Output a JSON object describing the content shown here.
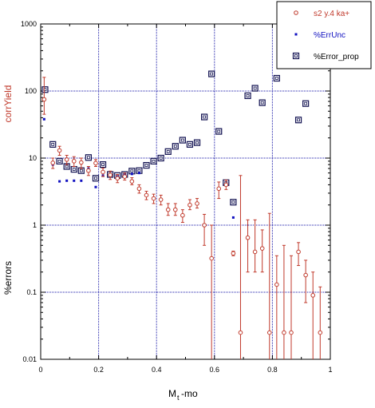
{
  "chart_data": {
    "type": "scatter",
    "xlabel": "M",
    "xlabel_sub": "t",
    "xlabel_suffix": "-mo",
    "ylabel_top": "corrYield",
    "ylabel_bottom": "%errors",
    "xlim": [
      0,
      1
    ],
    "ylim": [
      0.01,
      1000
    ],
    "y_scale": "log",
    "grid": true,
    "legend_position": "top-right",
    "x_ticks": [
      "0",
      "0.2",
      "0.4",
      "0.6",
      "0.8",
      "1"
    ],
    "y_ticks": [
      "0.01",
      "0.1",
      "1",
      "10",
      "100",
      "1000"
    ],
    "colors": {
      "red": "#c0392b",
      "blue": "#1010c0",
      "navy": "#101050",
      "grid": "#1a1aa8"
    },
    "series": [
      {
        "name": "s2 y.4 ka+",
        "marker": "circle",
        "color": "#c0392b",
        "x": [
          0.012,
          0.042,
          0.065,
          0.09,
          0.115,
          0.14,
          0.165,
          0.19,
          0.215,
          0.24,
          0.265,
          0.29,
          0.315,
          0.34,
          0.365,
          0.39,
          0.415,
          0.44,
          0.465,
          0.49,
          0.515,
          0.54,
          0.565,
          0.59,
          0.615,
          0.64,
          0.665,
          0.69,
          0.715,
          0.74,
          0.765,
          0.79,
          0.815,
          0.84,
          0.865,
          0.89,
          0.915,
          0.94,
          0.965
        ],
        "y": [
          75,
          8.5,
          13,
          9.5,
          9,
          8.6,
          6.5,
          8.4,
          6.2,
          5.6,
          5,
          5.3,
          4.5,
          3.5,
          2.8,
          2.5,
          2.4,
          1.7,
          1.7,
          1.4,
          2,
          2.1,
          1,
          0.32,
          3.5,
          4,
          0.38,
          0.025,
          0.65,
          0.4,
          0.45,
          0.025,
          0.13,
          0.025,
          0.025,
          0.4,
          0.18,
          0.09,
          0.025
        ],
        "y_low": [
          45,
          7,
          11,
          8,
          7.5,
          7,
          5.5,
          7.5,
          5.3,
          4.8,
          4.3,
          4.7,
          4,
          3,
          2.4,
          2.1,
          2,
          1.4,
          1.4,
          1.1,
          1.7,
          1.8,
          0.5,
          0.01,
          2.5,
          3.4,
          0.35,
          0.01,
          0.2,
          0.2,
          0.2,
          0.01,
          0.01,
          0.01,
          0.01,
          0.25,
          0.07,
          0.01,
          0.01
        ],
        "y_high": [
          160,
          10,
          15,
          11,
          10.5,
          10,
          7.5,
          9.5,
          7.1,
          6.4,
          5.7,
          6,
          5.1,
          4,
          3.2,
          2.9,
          2.8,
          2.1,
          2.1,
          1.7,
          2.4,
          2.5,
          1.45,
          1,
          4.4,
          4.7,
          0.41,
          5.5,
          1.2,
          1.2,
          0.85,
          1.5,
          0.35,
          0.5,
          0.35,
          0.55,
          0.3,
          0.2,
          0.12
        ]
      },
      {
        "name": "%ErrUnc",
        "marker": "square-small",
        "color": "#1010c0",
        "x": [
          0.012,
          0.042,
          0.065,
          0.09,
          0.115,
          0.14,
          0.165,
          0.19,
          0.215,
          0.24,
          0.265,
          0.29,
          0.315,
          0.34,
          0.665
        ],
        "y": [
          38,
          8,
          4.5,
          4.6,
          4.6,
          4.6,
          7,
          3.7,
          5.5,
          5.5,
          5.3,
          5.6,
          5.8,
          6,
          1.3
        ]
      },
      {
        "name": "%Error_prop",
        "marker": "square-open",
        "color": "#101050",
        "x": [
          0.015,
          0.042,
          0.065,
          0.09,
          0.115,
          0.14,
          0.165,
          0.19,
          0.215,
          0.24,
          0.265,
          0.29,
          0.315,
          0.34,
          0.365,
          0.39,
          0.415,
          0.44,
          0.465,
          0.49,
          0.515,
          0.54,
          0.565,
          0.59,
          0.615,
          0.64,
          0.665,
          0.715,
          0.74,
          0.765,
          0.815,
          0.89,
          0.915
        ],
        "y": [
          105,
          16,
          9,
          7.5,
          6.8,
          6.5,
          10.2,
          5,
          8,
          5.7,
          5.5,
          5.7,
          6.4,
          6.5,
          7.8,
          9,
          10,
          12.5,
          15,
          18.5,
          16,
          17,
          41,
          180,
          25,
          4.3,
          2.2,
          85,
          110,
          67,
          155,
          37,
          65
        ]
      }
    ]
  }
}
